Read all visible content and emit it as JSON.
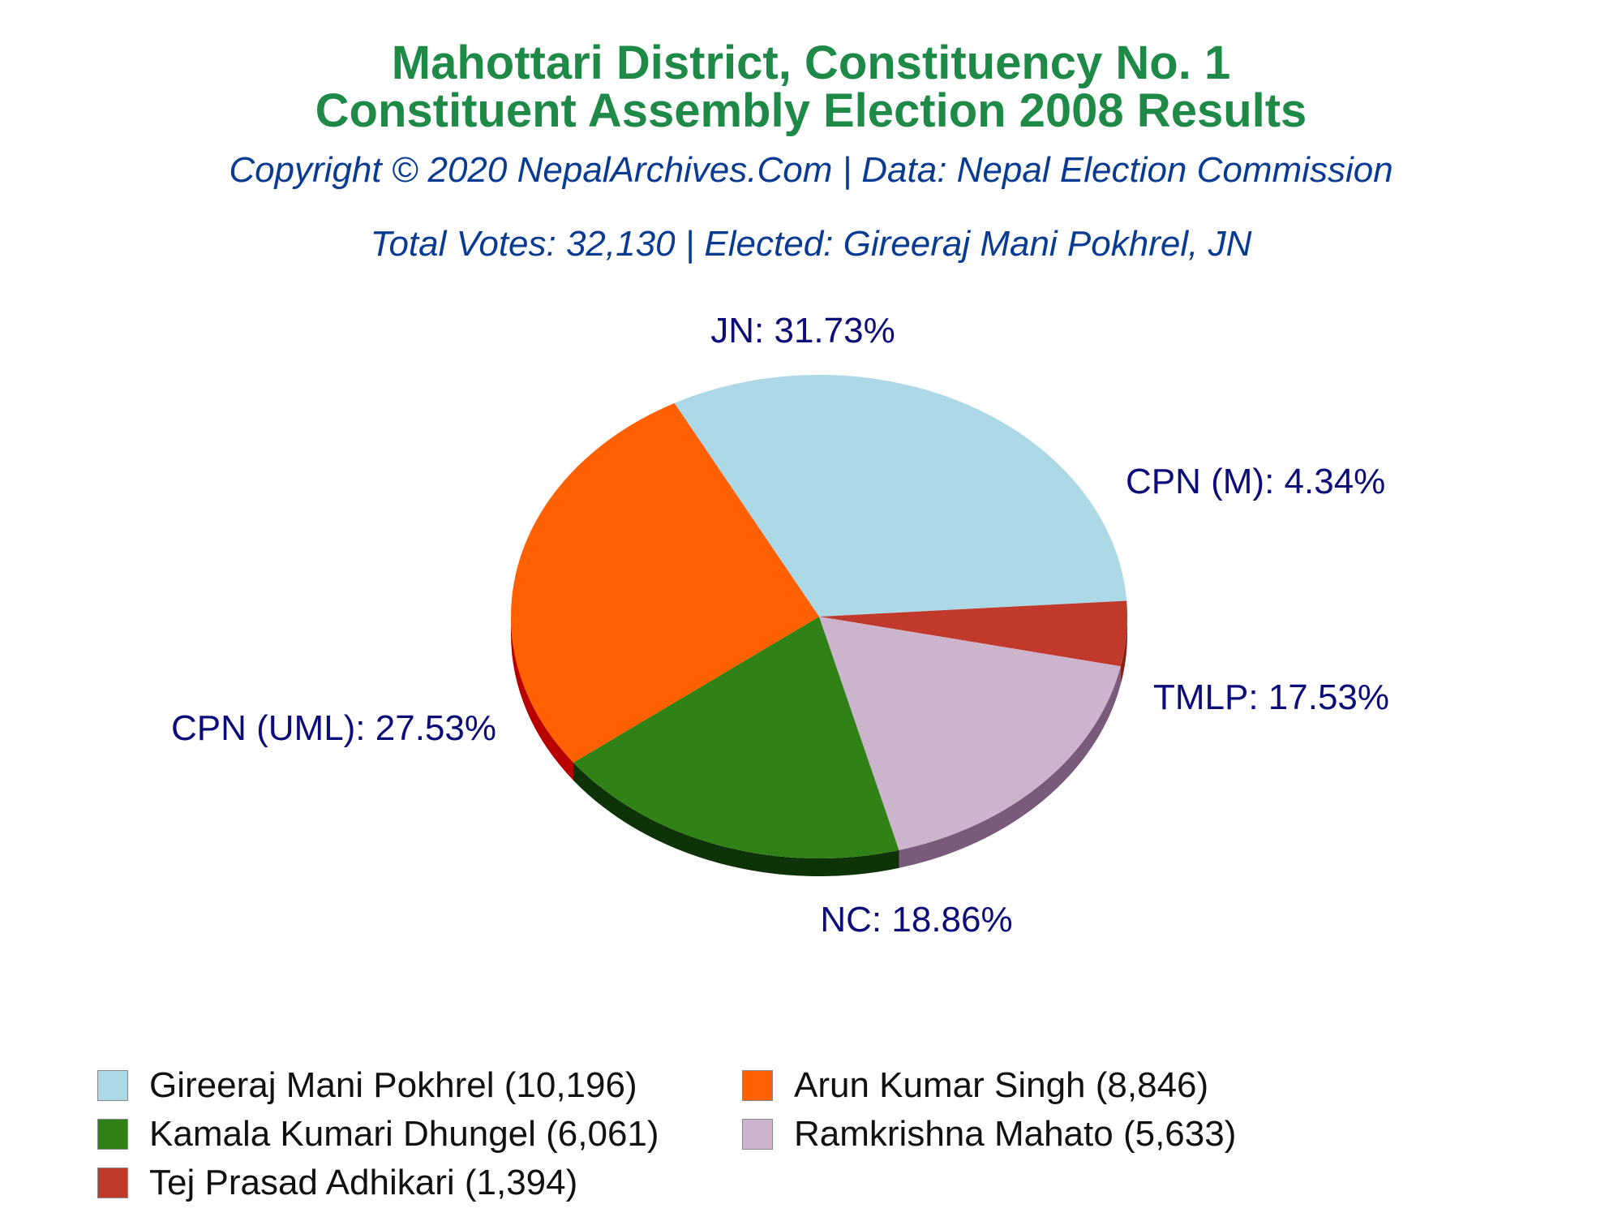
{
  "header": {
    "title_line1": "Mahottari District, Constituency No. 1",
    "title_line2": "Constituent Assembly Election 2008 Results",
    "copyright": "Copyright © 2020 NepalArchives.Com | Data: Nepal Election Commission",
    "totals": "Total Votes: 32,130 | Elected: Gireeraj Mani Pokhrel, JN"
  },
  "chart_data": {
    "type": "pie",
    "total_votes": 32130,
    "slices": [
      {
        "party": "JN",
        "label": "JN: 31.73%",
        "percent": 31.73,
        "candidate": "Gireeraj Mani Pokhrel (10,196)",
        "votes": 10196,
        "color": "#add8e6",
        "side_color": "#7fa6b3"
      },
      {
        "party": "CPN (M)",
        "label": "CPN (M): 4.34%",
        "percent": 4.34,
        "candidate": "Tej Prasad Adhikari (1,394)",
        "votes": 1394,
        "color": "#c0392b",
        "side_color": "#8a1f16"
      },
      {
        "party": "TMLP",
        "label": "TMLP: 17.53%",
        "percent": 17.53,
        "candidate": "Ramkrishna Mahato (5,633)",
        "votes": 5633,
        "color": "#ccb4cc",
        "side_color": "#7a5a7a"
      },
      {
        "party": "NC",
        "label": "NC: 18.86%",
        "percent": 18.86,
        "candidate": "Kamala Kumari Dhungel (6,061)",
        "votes": 6061,
        "color": "#318216",
        "side_color": "#0f3308"
      },
      {
        "party": "CPN (UML)",
        "label": "CPN (UML): 27.53%",
        "percent": 27.53,
        "candidate": "Arun Kumar Singh (8,846)",
        "votes": 8846,
        "color": "#ff6000",
        "side_color": "#b80000"
      }
    ]
  },
  "legend": [
    {
      "text": "Gireeraj Mani Pokhrel (10,196)",
      "color": "#add8e6"
    },
    {
      "text": "Arun Kumar Singh (8,846)",
      "color": "#ff6000"
    },
    {
      "text": "Kamala Kumari Dhungel (6,061)",
      "color": "#318216"
    },
    {
      "text": "Ramkrishna Mahato (5,633)",
      "color": "#ccb4cc"
    },
    {
      "text": "Tej Prasad Adhikari (1,394)",
      "color": "#c0392b"
    }
  ]
}
